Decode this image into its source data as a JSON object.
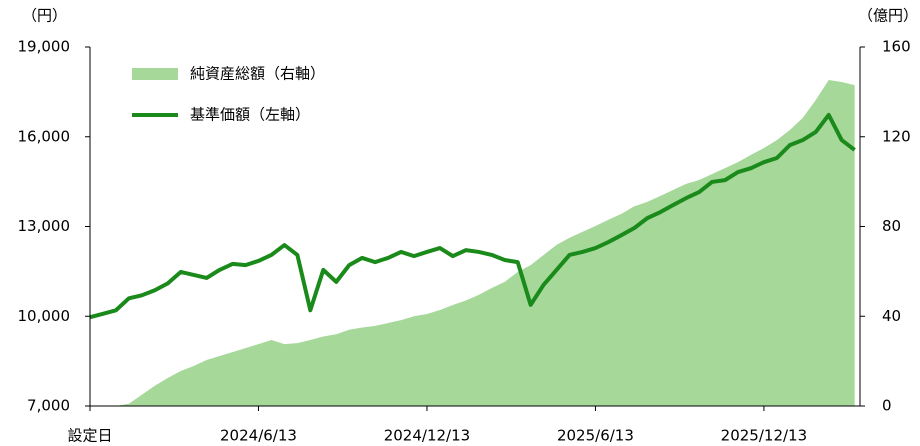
{
  "chart_data": {
    "type": "line",
    "y_label": "（円）",
    "y2_label": "（億円）",
    "categories": [
      "設定日",
      null,
      null,
      null,
      null,
      null,
      null,
      null,
      null,
      null,
      null,
      null,
      null,
      "2024/6/13",
      null,
      null,
      null,
      null,
      null,
      null,
      null,
      null,
      null,
      null,
      null,
      null,
      "2024/12/13",
      null,
      null,
      null,
      null,
      null,
      null,
      null,
      null,
      null,
      null,
      null,
      null,
      "2025/6/13",
      null,
      null,
      null,
      null,
      null,
      null,
      null,
      null,
      null,
      null,
      null,
      null,
      "2025/12/13",
      null,
      null,
      null,
      null,
      null,
      null,
      null
    ],
    "series": [
      {
        "name": "純資産総額（右軸）",
        "type": "area",
        "axis": "y2",
        "color": "#a6d89a",
        "values": [
          0,
          0,
          0,
          1,
          5,
          9,
          12.5,
          15.6,
          17.8,
          20.5,
          22.3,
          24,
          25.8,
          27.6,
          29.4,
          27.6,
          28,
          29.4,
          31,
          32,
          34,
          35,
          35.7,
          37,
          38.3,
          40,
          41,
          42.8,
          45,
          47,
          49.5,
          52.6,
          55.3,
          59.7,
          62.8,
          67.3,
          71.8,
          75,
          77.6,
          80.2,
          83,
          85.6,
          89,
          91,
          93.6,
          96.3,
          99,
          100.7,
          103.4,
          106,
          108.7,
          111.9,
          115,
          118.5,
          123,
          128.4,
          136.4,
          145.3,
          144.4,
          143
        ]
      },
      {
        "name": "基準価額（左軸）",
        "type": "line",
        "color": "#1a8a1a",
        "values": [
          9970,
          10080,
          10200,
          10600,
          10700,
          10870,
          11100,
          11480,
          11380,
          11280,
          11550,
          11750,
          11710,
          11850,
          12050,
          12380,
          12050,
          10200,
          11550,
          11150,
          11710,
          11950,
          11810,
          11950,
          12150,
          12010,
          12150,
          12280,
          12010,
          12210,
          12150,
          12050,
          11880,
          11810,
          10380,
          11050,
          11550,
          12050,
          12150,
          12280,
          12480,
          12710,
          12950,
          13280,
          13480,
          13720,
          13950,
          14150,
          14490,
          14550,
          14820,
          14950,
          15150,
          15290,
          15720,
          15890,
          16160,
          16730,
          15890,
          15560
        ]
      }
    ],
    "ylim": [
      7000,
      19000
    ],
    "yticks": [
      {
        "value": 7000,
        "label": "7,000"
      },
      {
        "value": 10000,
        "label": "10,000"
      },
      {
        "value": 13000,
        "label": "13,000"
      },
      {
        "value": 16000,
        "label": "16,000"
      },
      {
        "value": 19000,
        "label": "19,000"
      }
    ],
    "y2lim": [
      0,
      160
    ],
    "y2ticks": [
      0,
      40,
      80,
      120,
      160
    ],
    "legend": "upper left",
    "grid": false
  }
}
